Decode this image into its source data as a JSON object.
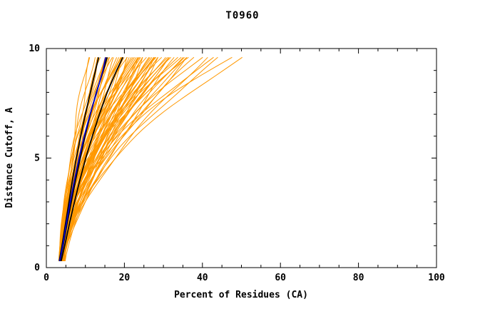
{
  "chart_data": {
    "type": "line",
    "title": "T0960",
    "xlabel": "Percent of Residues (CA)",
    "ylabel": "Distance Cutoff, A",
    "xlim": [
      0,
      100
    ],
    "ylim": [
      0,
      10
    ],
    "x_major_ticks": [
      0,
      20,
      40,
      60,
      80,
      100
    ],
    "x_minor_step": 5,
    "y_major_ticks": [
      0,
      5,
      10
    ],
    "y_minor_step": 1,
    "grid": false,
    "legend": "none",
    "colors": {
      "ensemble": "#ff9800",
      "highlight": "#000000",
      "special": "#0000cd",
      "axis": "#000000",
      "background": "#ffffff"
    },
    "y_levels": [
      0.3,
      1,
      2,
      3,
      4,
      5,
      6,
      7,
      8,
      9,
      9.6
    ],
    "named_series": [
      {
        "name": "model-black-1",
        "color": "#000000",
        "width": 1.7,
        "x": [
          3.3,
          4.0,
          4.9,
          5.8,
          6.7,
          7.7,
          8.8,
          10.0,
          11.3,
          12.6,
          13.4
        ]
      },
      {
        "name": "model-black-2",
        "color": "#000000",
        "width": 1.7,
        "x": [
          3.5,
          4.3,
          5.3,
          6.4,
          7.5,
          8.7,
          9.9,
          11.3,
          12.8,
          14.6,
          15.6
        ]
      },
      {
        "name": "model-black-3",
        "color": "#000000",
        "width": 1.7,
        "x": [
          3.8,
          4.7,
          5.9,
          7.2,
          8.6,
          10.1,
          11.8,
          13.6,
          15.6,
          18.0,
          19.6
        ]
      },
      {
        "name": "model-blue",
        "color": "#0000cd",
        "width": 1.7,
        "x": [
          3.4,
          4.2,
          5.1,
          6.1,
          7.2,
          8.4,
          9.7,
          11.2,
          12.9,
          14.5,
          15.2
        ]
      }
    ],
    "ensemble": {
      "color": "#ff9800",
      "width": 1,
      "y_range": [
        0.3,
        9.6
      ],
      "wiggle_amp": 0.6,
      "wiggle_freq": 1.4,
      "curves": [
        [
          3.2,
          10.5,
          1.3,
          0.5
        ],
        [
          3.6,
          12.0,
          1.5,
          1.2
        ],
        [
          4.0,
          13.0,
          1.2,
          2.1
        ],
        [
          3.4,
          13.5,
          1.8,
          3.0
        ],
        [
          4.2,
          11.5,
          1.4,
          4.2
        ],
        [
          3.8,
          14.0,
          1.6,
          5.1
        ],
        [
          3.3,
          14.5,
          1.3,
          0.8
        ],
        [
          3.9,
          15.0,
          1.7,
          1.9
        ],
        [
          4.4,
          15.5,
          1.4,
          2.7
        ],
        [
          3.5,
          16.0,
          2.0,
          3.6
        ],
        [
          4.1,
          16.5,
          1.5,
          4.4
        ],
        [
          3.7,
          17.0,
          1.8,
          5.3
        ],
        [
          4.6,
          17.5,
          1.3,
          0.2
        ],
        [
          3.2,
          18.0,
          1.6,
          1.1
        ],
        [
          4.8,
          16.2,
          1.9,
          2.3
        ],
        [
          3.6,
          17.8,
          1.4,
          3.8
        ],
        [
          3.4,
          18.5,
          1.7,
          0.6
        ],
        [
          4.0,
          19.0,
          1.5,
          1.5
        ],
        [
          4.5,
          19.5,
          1.9,
          2.4
        ],
        [
          3.8,
          20.0,
          1.3,
          3.3
        ],
        [
          3.3,
          20.5,
          1.6,
          4.1
        ],
        [
          4.2,
          21.0,
          2.0,
          5.0
        ],
        [
          4.7,
          21.5,
          1.4,
          5.9
        ],
        [
          3.5,
          22.0,
          1.8,
          0.9
        ],
        [
          3.9,
          18.8,
          2.1,
          1.8
        ],
        [
          4.3,
          20.8,
          1.2,
          2.6
        ],
        [
          3.6,
          21.8,
          1.5,
          3.5
        ],
        [
          4.1,
          19.8,
          1.7,
          4.3
        ],
        [
          3.4,
          22.5,
          1.6,
          0.4
        ],
        [
          3.8,
          23.0,
          1.9,
          1.3
        ],
        [
          4.4,
          23.5,
          1.3,
          2.2
        ],
        [
          3.5,
          24.0,
          1.7,
          3.1
        ],
        [
          4.0,
          24.5,
          2.1,
          4.0
        ],
        [
          4.6,
          25.0,
          1.4,
          4.9
        ],
        [
          3.7,
          25.5,
          1.8,
          5.7
        ],
        [
          3.3,
          26.0,
          1.5,
          0.7
        ],
        [
          4.2,
          23.8,
          2.0,
          1.6
        ],
        [
          4.8,
          24.8,
          1.2,
          2.5
        ],
        [
          3.9,
          25.2,
          1.6,
          3.4
        ],
        [
          3.6,
          22.8,
          1.9,
          4.2
        ],
        [
          3.5,
          26.5,
          1.5,
          0.3
        ],
        [
          4.1,
          27.0,
          1.8,
          1.2
        ],
        [
          4.5,
          27.5,
          1.3,
          2.0
        ],
        [
          3.8,
          28.0,
          1.7,
          2.9
        ],
        [
          3.4,
          28.5,
          2.0,
          3.8
        ],
        [
          4.3,
          29.0,
          1.4,
          4.7
        ],
        [
          4.7,
          29.5,
          1.9,
          5.5
        ],
        [
          3.6,
          30.0,
          1.6,
          0.8
        ],
        [
          3.9,
          27.8,
          2.2,
          1.7
        ],
        [
          4.2,
          28.8,
          1.3,
          2.6
        ],
        [
          3.7,
          29.2,
          1.7,
          3.5
        ],
        [
          4.4,
          26.8,
          1.5,
          4.4
        ],
        [
          3.5,
          30.5,
          1.8,
          0.5
        ],
        [
          4.0,
          31.0,
          1.4,
          1.4
        ],
        [
          4.6,
          31.5,
          2.0,
          2.3
        ],
        [
          3.8,
          32.0,
          1.6,
          3.2
        ],
        [
          3.4,
          32.5,
          1.9,
          4.1
        ],
        [
          4.2,
          33.0,
          1.3,
          5.0
        ],
        [
          3.9,
          33.5,
          1.7,
          5.8
        ],
        [
          4.5,
          34.0,
          2.1,
          0.9
        ],
        [
          3.6,
          34.5,
          1.5,
          0.6
        ],
        [
          4.1,
          35.0,
          1.9,
          1.5
        ],
        [
          3.8,
          36.0,
          1.4,
          2.4
        ],
        [
          4.4,
          36.5,
          1.8,
          3.3
        ],
        [
          3.5,
          37.0,
          2.2,
          4.2
        ],
        [
          4.0,
          38.0,
          1.6,
          5.1
        ],
        [
          3.7,
          39.5,
          1.9,
          0.7
        ],
        [
          4.3,
          41.0,
          1.5,
          1.6
        ],
        [
          3.9,
          43.0,
          2.0,
          2.5
        ],
        [
          4.1,
          44.5,
          1.7,
          3.4
        ],
        [
          3.8,
          47.0,
          2.1,
          0.8
        ],
        [
          4.2,
          50.0,
          1.8,
          1.9
        ]
      ]
    }
  }
}
